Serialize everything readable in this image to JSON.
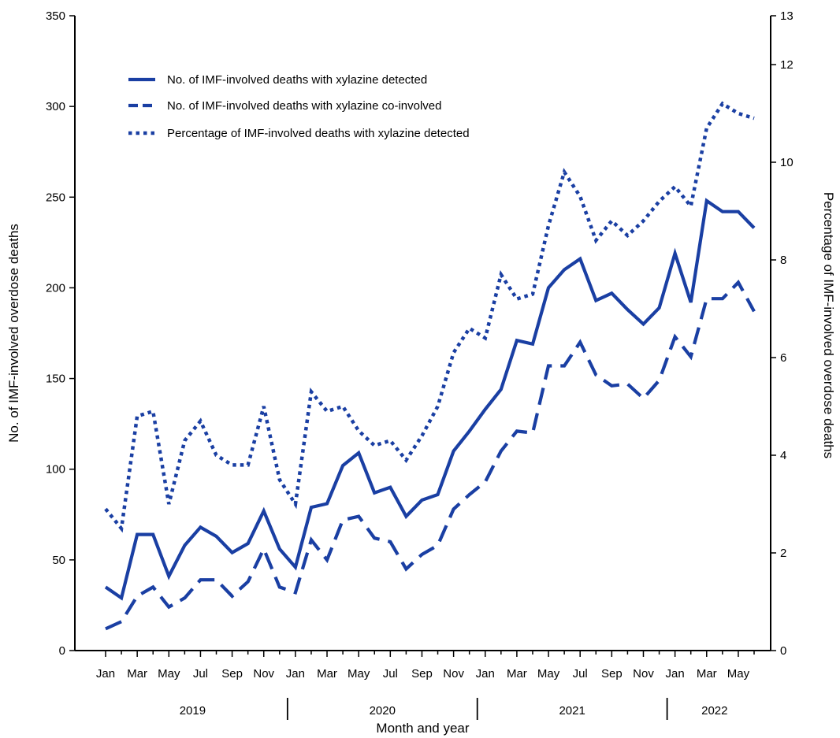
{
  "chart_data": {
    "type": "line",
    "title": "",
    "xlabel": "Month and year",
    "ylabel": "No. of IMF-involved overdose deaths",
    "ylabel_right": "Percentage of IMF-involved overdose deaths",
    "ylim": [
      0,
      350
    ],
    "ylim_right": [
      0,
      13
    ],
    "yticks": [
      "0",
      "50",
      "100",
      "150",
      "200",
      "250",
      "300",
      "350"
    ],
    "yticks_right": [
      "0",
      "2",
      "4",
      "6",
      "8",
      "10",
      "12",
      "13"
    ],
    "x_month_labels": [
      "Jan",
      "Mar",
      "May",
      "Jul",
      "Sep",
      "Nov",
      "Jan",
      "Mar",
      "May",
      "Jul",
      "Sep",
      "Nov",
      "Jan",
      "Mar",
      "May",
      "Jul",
      "Sep",
      "Nov",
      "Jan",
      "Mar",
      "May"
    ],
    "years": [
      "2019",
      "2020",
      "2021",
      "2022"
    ],
    "x": [
      "Jan 2019",
      "Feb 2019",
      "Mar 2019",
      "Apr 2019",
      "May 2019",
      "Jun 2019",
      "Jul 2019",
      "Aug 2019",
      "Sep 2019",
      "Oct 2019",
      "Nov 2019",
      "Dec 2019",
      "Jan 2020",
      "Feb 2020",
      "Mar 2020",
      "Apr 2020",
      "May 2020",
      "Jun 2020",
      "Jul 2020",
      "Aug 2020",
      "Sep 2020",
      "Oct 2020",
      "Nov 2020",
      "Dec 2020",
      "Jan 2021",
      "Feb 2021",
      "Mar 2021",
      "Apr 2021",
      "May 2021",
      "Jun 2021",
      "Jul 2021",
      "Aug 2021",
      "Sep 2021",
      "Oct 2021",
      "Nov 2021",
      "Dec 2021",
      "Jan 2022",
      "Feb 2022",
      "Mar 2022",
      "Apr 2022",
      "May 2022",
      "Jun 2022"
    ],
    "legend_position": "top-left",
    "grid": false,
    "color": "#1a3fa3",
    "series": [
      {
        "name": "No. of IMF-involved deaths with xylazine detected",
        "style": "solid",
        "axis": "left",
        "values": [
          35,
          29,
          64,
          64,
          41,
          58,
          68,
          63,
          54,
          59,
          77,
          56,
          46,
          79,
          81,
          102,
          109,
          87,
          90,
          74,
          83,
          86,
          110,
          121,
          133,
          144,
          171,
          169,
          200,
          210,
          216,
          193,
          197,
          188,
          180,
          189,
          219,
          192,
          248,
          242,
          242,
          233
        ]
      },
      {
        "name": "No. of IMF-involved deaths with xylazine co-involved",
        "style": "dashed",
        "axis": "left",
        "values": [
          12,
          16,
          30,
          35,
          24,
          29,
          39,
          39,
          30,
          38,
          56,
          35,
          32,
          61,
          50,
          72,
          74,
          62,
          60,
          45,
          53,
          58,
          78,
          86,
          93,
          110,
          121,
          120,
          157,
          157,
          170,
          152,
          146,
          147,
          139,
          149,
          173,
          162,
          194,
          194,
          203,
          187
        ]
      },
      {
        "name": "Percentage of IMF-involved deaths with xylazine detected",
        "style": "dotted",
        "axis": "right",
        "values": [
          2.9,
          2.5,
          4.8,
          4.9,
          3.0,
          4.3,
          4.7,
          4.0,
          3.8,
          3.8,
          5.0,
          3.5,
          3.0,
          5.3,
          4.9,
          5.0,
          4.5,
          4.2,
          4.3,
          3.9,
          4.4,
          5.0,
          6.1,
          6.6,
          6.4,
          7.7,
          7.2,
          7.3,
          8.7,
          9.8,
          9.3,
          8.4,
          8.8,
          8.5,
          8.8,
          9.2,
          9.5,
          9.1,
          10.7,
          11.2,
          11.0,
          10.9
        ]
      }
    ]
  }
}
